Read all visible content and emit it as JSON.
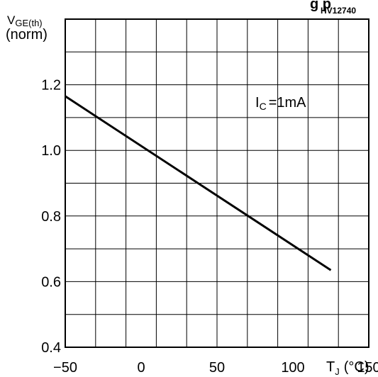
{
  "header": {
    "doc_code": "HV12740",
    "cut_title_fragment": "g  p"
  },
  "chart_data": {
    "type": "line",
    "ylabel_main": "V",
    "ylabel_sub": "GE(th)",
    "ylabel_unit": "(norm)",
    "xlabel_main": "T",
    "xlabel_sub": "J",
    "xlabel_unit": "(°C)",
    "annotation_main": "I",
    "annotation_sub": "C",
    "annotation_value": "=1mA",
    "xlim": [
      -50,
      150
    ],
    "ylim": [
      0.4,
      1.4
    ],
    "xticks": [
      -50,
      0,
      50,
      100,
      150
    ],
    "xtick_labels": [
      "−50",
      "0",
      "50",
      "100",
      "150"
    ],
    "yticks": [
      0.4,
      0.6,
      0.8,
      1.0,
      1.2
    ],
    "ytick_labels": [
      "0.4",
      "0.6",
      "0.8",
      "1.0",
      "1.2"
    ],
    "grid": true,
    "series": [
      {
        "x": [
          -50,
          125
        ],
        "y": [
          1.165,
          0.635
        ]
      }
    ]
  }
}
